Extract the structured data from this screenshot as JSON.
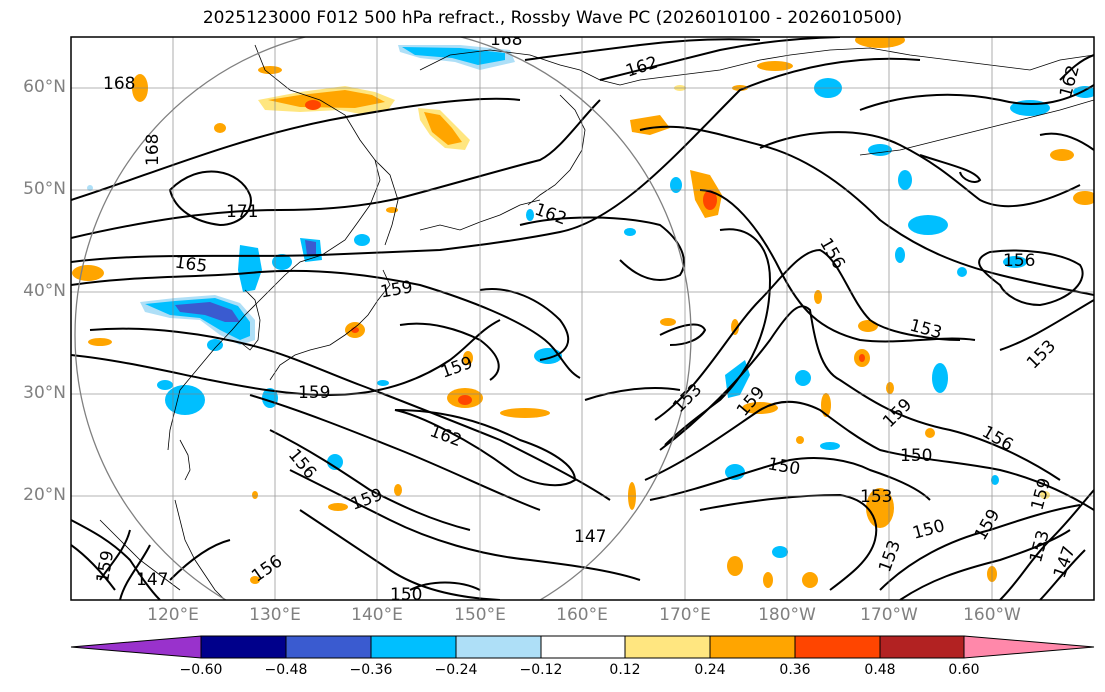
{
  "title": "2025123000 F012 500 hPa refract., Rossby Wave PC (2026010100 - 2026010500)",
  "lat_labels": [
    "60°N",
    "50°N",
    "40°N",
    "30°N",
    "20°N"
  ],
  "lon_labels": [
    "120°E",
    "130°E",
    "140°E",
    "150°E",
    "160°E",
    "170°E",
    "180°W",
    "170°W",
    "160°W"
  ],
  "contour_labels": [
    "168",
    "168",
    "168",
    "171",
    "165",
    "162",
    "162",
    "162",
    "159",
    "159",
    "159",
    "159",
    "159",
    "159",
    "159",
    "156",
    "156",
    "156",
    "153",
    "153",
    "153",
    "153",
    "153",
    "153",
    "150",
    "150",
    "150",
    "150",
    "147",
    "147",
    "147",
    "162",
    "156",
    "159",
    "159",
    "156"
  ],
  "colorbar": {
    "ticks": [
      "−0.60",
      "−0.48",
      "−0.36",
      "−0.24",
      "−0.12",
      "0.12",
      "0.24",
      "0.36",
      "0.48",
      "0.60"
    ],
    "colors": [
      "#9932cc",
      "#00008b",
      "#3a5bd0",
      "#00bfff",
      "#aedff7",
      "#ffffff",
      "#ffe680",
      "#ffa500",
      "#ff4500",
      "#b22222",
      "#ff88aa"
    ]
  }
}
